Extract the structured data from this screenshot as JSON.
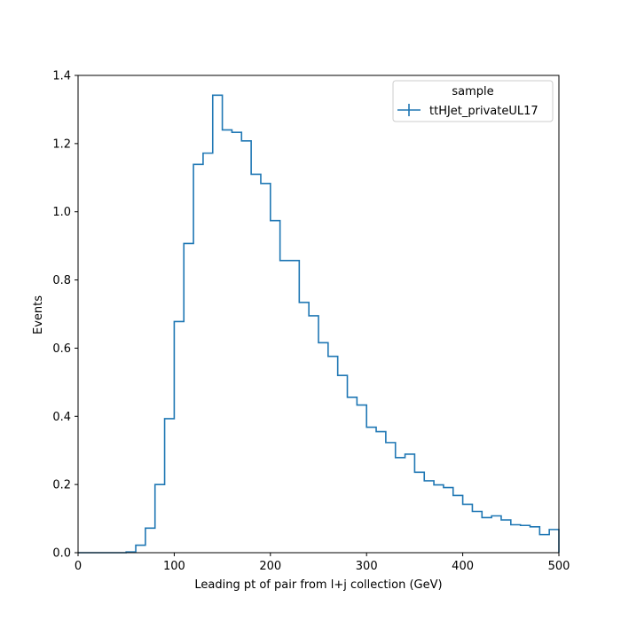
{
  "chart_data": {
    "type": "histogram-step",
    "xlabel": "Leading pt of pair from l+j collection (GeV)",
    "ylabel": "Events",
    "xlim": [
      0,
      500
    ],
    "ylim": [
      0,
      1.4
    ],
    "xticks": [
      0,
      100,
      200,
      300,
      400,
      500
    ],
    "xtick_labels": [
      "0",
      "100",
      "200",
      "300",
      "400",
      "500"
    ],
    "yticks": [
      0.0,
      0.2,
      0.4,
      0.6,
      0.8,
      1.0,
      1.2,
      1.4
    ],
    "ytick_labels": [
      "0.0",
      "0.2",
      "0.4",
      "0.6",
      "0.8",
      "1.0",
      "1.2",
      "1.4"
    ],
    "grid": false,
    "legend": {
      "title": "sample",
      "placement": "top-right"
    },
    "series": [
      {
        "name": "ttHJet_privateUL17",
        "color": "#1f77b4",
        "bin_edges": [
          0,
          10,
          20,
          30,
          40,
          50,
          60,
          70,
          80,
          90,
          100,
          110,
          120,
          130,
          140,
          150,
          160,
          170,
          180,
          190,
          200,
          210,
          220,
          230,
          240,
          250,
          260,
          270,
          280,
          290,
          300,
          310,
          320,
          330,
          340,
          350,
          360,
          370,
          380,
          390,
          400,
          410,
          420,
          430,
          440,
          450,
          460,
          470,
          480,
          490,
          500
        ],
        "values": [
          0,
          0,
          0,
          0,
          0,
          0.002,
          0.022,
          0.072,
          0.2,
          0.393,
          0.678,
          0.907,
          1.139,
          1.172,
          1.342,
          1.24,
          1.233,
          1.208,
          1.11,
          1.083,
          0.974,
          0.857,
          0.857,
          0.734,
          0.695,
          0.616,
          0.576,
          0.52,
          0.456,
          0.433,
          0.368,
          0.355,
          0.323,
          0.279,
          0.289,
          0.236,
          0.211,
          0.199,
          0.191,
          0.168,
          0.142,
          0.121,
          0.103,
          0.108,
          0.096,
          0.082,
          0.08,
          0.076,
          0.053,
          0.068
        ]
      }
    ]
  }
}
